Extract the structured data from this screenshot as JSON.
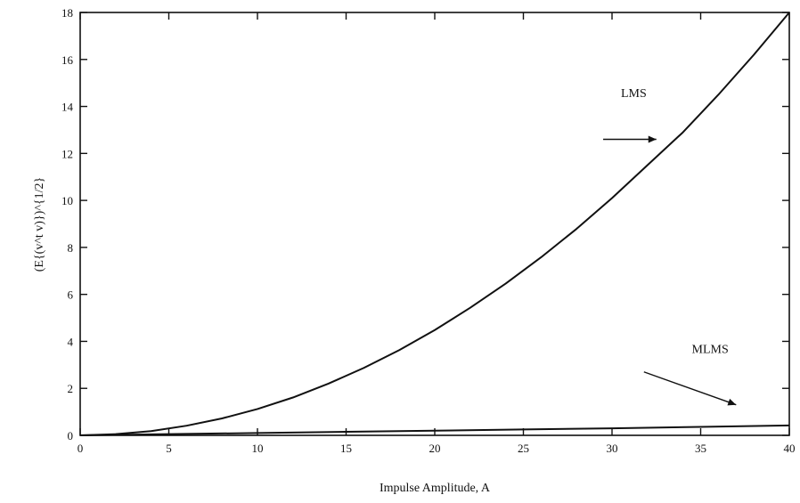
{
  "chart_data": {
    "type": "line",
    "title": "",
    "xlabel": "Impulse Amplitude, A",
    "ylabel": "(E{(v^t v)})^{1/2}",
    "xlim": [
      0,
      40
    ],
    "ylim": [
      0,
      18
    ],
    "x_ticks": [
      0,
      5,
      10,
      15,
      20,
      25,
      30,
      35,
      40
    ],
    "y_ticks": [
      0,
      2,
      4,
      6,
      8,
      10,
      12,
      14,
      16,
      18
    ],
    "grid": false,
    "legend": "none",
    "series": [
      {
        "name": "LMS",
        "x": [
          0,
          2,
          4,
          6,
          8,
          10,
          12,
          14,
          16,
          18,
          20,
          22,
          24,
          26,
          28,
          30,
          32,
          34,
          36,
          38,
          40
        ],
        "y": [
          0,
          0.05,
          0.18,
          0.41,
          0.72,
          1.12,
          1.61,
          2.2,
          2.87,
          3.63,
          4.48,
          5.43,
          6.46,
          7.58,
          8.79,
          10.1,
          11.5,
          12.9,
          14.5,
          16.2,
          18.0
        ]
      },
      {
        "name": "MLMS",
        "x": [
          0,
          5,
          10,
          15,
          20,
          25,
          30,
          35,
          40
        ],
        "y": [
          0,
          0.05,
          0.1,
          0.15,
          0.2,
          0.25,
          0.3,
          0.36,
          0.42
        ]
      }
    ],
    "annotations": [
      {
        "text": "LMS",
        "x": 30.5,
        "y": 14.4
      },
      {
        "text": "MLMS",
        "x": 34.5,
        "y": 3.5
      }
    ],
    "arrows": [
      {
        "from": [
          29.5,
          12.6
        ],
        "to": [
          32.5,
          12.6
        ]
      },
      {
        "from": [
          31.8,
          2.7
        ],
        "to": [
          37.0,
          1.3
        ]
      }
    ]
  }
}
